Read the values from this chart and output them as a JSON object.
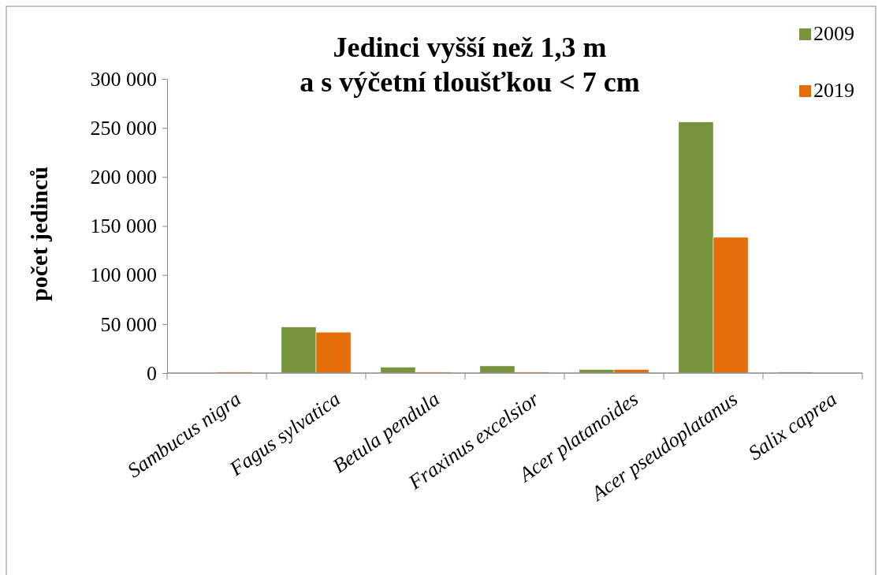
{
  "chart_data": {
    "type": "bar",
    "title": "Jedinci vyšší než 1,3 m\na s výčetní tloušťkou < 7 cm",
    "ylabel": "počet jedinců",
    "categories": [
      "Sambucus nigra",
      "Fagus sylvatica",
      "Betula pendula",
      "Fraxinus excelsior",
      "Acer platanoides",
      "Acer pseudoplatanus",
      "Salix caprea"
    ],
    "series": [
      {
        "name": "2009",
        "color": "#77933c",
        "values": [
          0,
          47000,
          6000,
          7300,
          3600,
          256000,
          1000
        ]
      },
      {
        "name": "2019",
        "color": "#e46c0a",
        "values": [
          1000,
          41700,
          1000,
          1000,
          3600,
          138400,
          0
        ]
      }
    ],
    "ylim": [
      0,
      300000
    ],
    "yticks": [
      {
        "value": 0,
        "label": "0"
      },
      {
        "value": 50000,
        "label": "50 000"
      },
      {
        "value": 100000,
        "label": "100 000"
      },
      {
        "value": 150000,
        "label": "150 000"
      },
      {
        "value": 200000,
        "label": "200 000"
      },
      {
        "value": 250000,
        "label": "250 000"
      },
      {
        "value": 300000,
        "label": "300 000"
      }
    ],
    "legend": "top right"
  }
}
